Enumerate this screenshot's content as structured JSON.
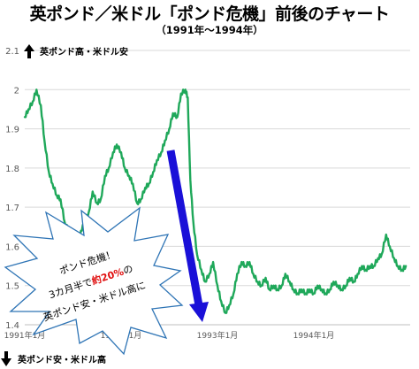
{
  "title": "英ポンド／米ドル「ポンド危機」前後のチャート",
  "subtitle": "（1991年～1994年）",
  "annotations": {
    "up_arrow_icon": "arrow-up-icon",
    "up_label": "英ポンド高・米ドル安",
    "down_arrow_icon": "arrow-down-icon",
    "down_label": "英ポンド安・米ドル高",
    "burst": {
      "line1": "ポンド危機！",
      "line2_prefix": "3カ月半で",
      "line2_highlight": "約20%",
      "line2_suffix": "の",
      "line3": "英ポンド安・米ドル高に"
    }
  },
  "colors": {
    "series": "#1fa85a",
    "arrow": "#1a10d8",
    "highlight": "#e01010",
    "grid": "#d9d9d9",
    "axis_text": "#595959",
    "burst_stroke": "#2e74b5"
  },
  "chart_data": {
    "type": "line",
    "title": "英ポンド／米ドル「ポンド危機」前後のチャート",
    "subtitle": "（1991年～1994年）",
    "xlabel": "",
    "ylabel": "",
    "ylim": [
      1.4,
      2.1
    ],
    "yticks": [
      1.4,
      1.5,
      1.6,
      1.7,
      1.8,
      1.9,
      2.0,
      2.1
    ],
    "yticklabels": [
      "1.4",
      "1.5",
      "1.6",
      "1.7",
      "1.8",
      "1.9",
      "2",
      "2.1"
    ],
    "xlim": [
      "1991-01",
      "1995-01"
    ],
    "xticks": [
      "1991-01",
      "1992-01",
      "1993-01",
      "1994-01"
    ],
    "xticklabels": [
      "1991年1月",
      "1992年1月",
      "1993年1月",
      "1994年1月"
    ],
    "grid": true,
    "series": [
      {
        "color": "#1fa85a",
        "points": [
          [
            "1991-01-01",
            1.93
          ],
          [
            "1991-01-15",
            1.95
          ],
          [
            "1991-02-01",
            1.97
          ],
          [
            "1991-02-15",
            2.0
          ],
          [
            "1991-03-01",
            1.96
          ],
          [
            "1991-03-15",
            1.87
          ],
          [
            "1991-04-01",
            1.79
          ],
          [
            "1991-04-15",
            1.76
          ],
          [
            "1991-05-01",
            1.73
          ],
          [
            "1991-05-15",
            1.72
          ],
          [
            "1991-06-01",
            1.66
          ],
          [
            "1991-06-15",
            1.64
          ],
          [
            "1991-07-01",
            1.61
          ],
          [
            "1991-07-15",
            1.6
          ],
          [
            "1991-08-01",
            1.64
          ],
          [
            "1991-08-15",
            1.66
          ],
          [
            "1991-09-01",
            1.69
          ],
          [
            "1991-09-15",
            1.74
          ],
          [
            "1991-10-01",
            1.71
          ],
          [
            "1991-10-15",
            1.72
          ],
          [
            "1991-11-01",
            1.78
          ],
          [
            "1991-11-15",
            1.8
          ],
          [
            "1991-12-01",
            1.84
          ],
          [
            "1991-12-15",
            1.86
          ],
          [
            "1992-01-01",
            1.84
          ],
          [
            "1992-01-15",
            1.8
          ],
          [
            "1992-02-01",
            1.78
          ],
          [
            "1992-02-15",
            1.76
          ],
          [
            "1992-03-01",
            1.71
          ],
          [
            "1992-03-15",
            1.72
          ],
          [
            "1992-04-01",
            1.75
          ],
          [
            "1992-04-15",
            1.76
          ],
          [
            "1992-05-01",
            1.79
          ],
          [
            "1992-05-15",
            1.82
          ],
          [
            "1992-06-01",
            1.84
          ],
          [
            "1992-06-15",
            1.87
          ],
          [
            "1992-07-01",
            1.9
          ],
          [
            "1992-07-15",
            1.94
          ],
          [
            "1992-08-01",
            1.93
          ],
          [
            "1992-08-15",
            1.99
          ],
          [
            "1992-09-01",
            2.0
          ],
          [
            "1992-09-10",
            1.98
          ],
          [
            "1992-09-20",
            1.77
          ],
          [
            "1992-10-01",
            1.66
          ],
          [
            "1992-10-15",
            1.58
          ],
          [
            "1992-11-01",
            1.54
          ],
          [
            "1992-11-15",
            1.51
          ],
          [
            "1992-12-01",
            1.53
          ],
          [
            "1992-12-15",
            1.56
          ],
          [
            "1993-01-01",
            1.5
          ],
          [
            "1993-01-15",
            1.46
          ],
          [
            "1993-02-01",
            1.43
          ],
          [
            "1993-02-15",
            1.45
          ],
          [
            "1993-03-01",
            1.48
          ],
          [
            "1993-03-15",
            1.53
          ],
          [
            "1993-04-01",
            1.56
          ],
          [
            "1993-04-15",
            1.55
          ],
          [
            "1993-05-01",
            1.56
          ],
          [
            "1993-05-15",
            1.53
          ],
          [
            "1993-06-01",
            1.51
          ],
          [
            "1993-06-15",
            1.5
          ],
          [
            "1993-07-01",
            1.52
          ],
          [
            "1993-07-15",
            1.49
          ],
          [
            "1993-08-01",
            1.5
          ],
          [
            "1993-08-15",
            1.49
          ],
          [
            "1993-09-01",
            1.5
          ],
          [
            "1993-09-15",
            1.53
          ],
          [
            "1993-10-01",
            1.51
          ],
          [
            "1993-10-15",
            1.49
          ],
          [
            "1993-11-01",
            1.48
          ],
          [
            "1993-11-15",
            1.49
          ],
          [
            "1993-12-01",
            1.48
          ],
          [
            "1993-12-15",
            1.49
          ],
          [
            "1994-01-01",
            1.48
          ],
          [
            "1994-01-15",
            1.5
          ],
          [
            "1994-02-01",
            1.49
          ],
          [
            "1994-02-15",
            1.48
          ],
          [
            "1994-03-01",
            1.49
          ],
          [
            "1994-03-15",
            1.51
          ],
          [
            "1994-04-01",
            1.5
          ],
          [
            "1994-04-15",
            1.49
          ],
          [
            "1994-05-01",
            1.5
          ],
          [
            "1994-05-15",
            1.52
          ],
          [
            "1994-06-01",
            1.51
          ],
          [
            "1994-06-15",
            1.53
          ],
          [
            "1994-07-01",
            1.55
          ],
          [
            "1994-07-15",
            1.54
          ],
          [
            "1994-08-01",
            1.55
          ],
          [
            "1994-08-15",
            1.55
          ],
          [
            "1994-09-01",
            1.57
          ],
          [
            "1994-09-15",
            1.58
          ],
          [
            "1994-10-01",
            1.63
          ],
          [
            "1994-10-15",
            1.6
          ],
          [
            "1994-11-01",
            1.57
          ],
          [
            "1994-11-15",
            1.55
          ],
          [
            "1994-12-01",
            1.54
          ],
          [
            "1994-12-15",
            1.55
          ]
        ]
      }
    ]
  }
}
